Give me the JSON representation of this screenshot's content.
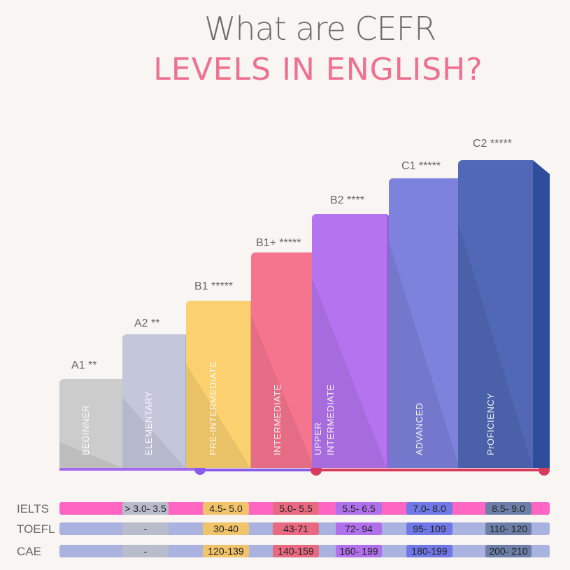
{
  "title_line1": "What are CEFR",
  "title_line2": "LEVELS IN ENGLISH?",
  "levels": [
    {
      "code": "A1 **",
      "name": "BEGINNER",
      "color": "#cccccc",
      "side": "#b3b3b3"
    },
    {
      "code": "A2 **",
      "name": "ELEMENTARY",
      "color": "#c4c7dc",
      "side": "#a9adc8"
    },
    {
      "code": "B1 *****",
      "name": "PRE-INTERMEDIATE",
      "color": "#fbd06f",
      "side": "#e2b24c"
    },
    {
      "code": "B1+ *****",
      "name": "INTERMEDIATE",
      "color": "#f6758e",
      "side": "#d9627a"
    },
    {
      "code": "B2 ****",
      "name": "UPPER INTERMEDIATE",
      "color": "#b574ef",
      "side": "#9a5fd8"
    },
    {
      "code": "C1 *****",
      "name": "ADVANCED",
      "color": "#7d82dd",
      "side": "#6a6bd0"
    },
    {
      "code": "C2 *****",
      "name": "PrOFICIENCY",
      "color": "#5068b6",
      "side": "#2e4e9c"
    }
  ],
  "table": {
    "rows": [
      {
        "label": "IELTS",
        "bar": "#ff66c4",
        "cells": [
          "> 3.0- 3.5",
          "4.5- 5.0",
          "5.0- 5.5",
          "5.5- 6.5",
          "7.0- 8.0",
          "8.5- 9.0"
        ]
      },
      {
        "label": "TOEFL",
        "bar": "#aab2e0",
        "cells": [
          "-",
          "30-40",
          "43-71",
          "72- 94",
          "95- 109",
          "110- 120"
        ]
      },
      {
        "label": "CAE",
        "bar": "#aab2e0",
        "cells": [
          "-",
          "120-139",
          "140-159",
          "160- 199",
          "180-199",
          "200- 210"
        ]
      }
    ],
    "cell_colors": [
      "#b9bccb",
      "#f2c46a",
      "#e86a80",
      "#b070ec",
      "#6f78e6",
      "#6d7fa8"
    ]
  }
}
